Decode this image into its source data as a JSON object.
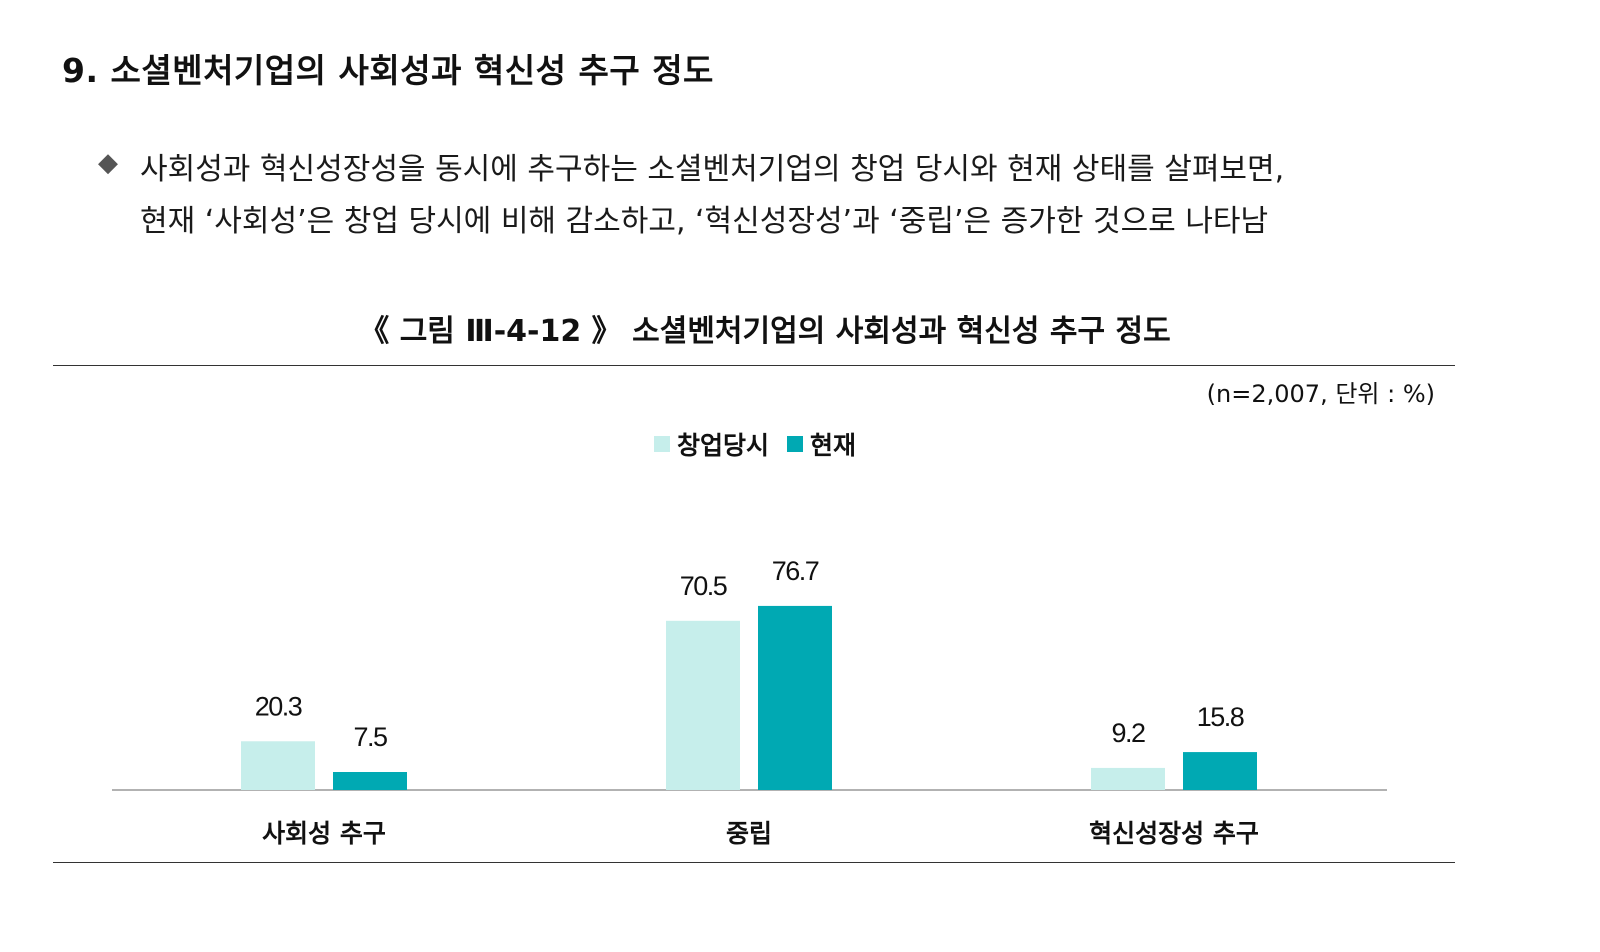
{
  "section": {
    "title": "9. 소셜벤처기업의 사회성과 혁신성 추구 정도"
  },
  "summary": {
    "bullet_icon": "diamond-bullet-icon",
    "bullet_glyph": "◆",
    "line1": "사회성과 혁신성장성을 동시에 추구하는 소셜벤처기업의 창업 당시와 현재 상태를 살펴보면,",
    "line2": "현재 ‘사회성’은 창업 당시에 비해 감소하고, ‘혁신성장성’과 ‘중립’은 증가한 것으로 나타남"
  },
  "figure": {
    "caption": "《 그림 Ⅲ-4-12 》 소셜벤처기업의 사회성과 혁신성 추구 정도",
    "unit_note": "(n=2,007,  단위 : %)"
  },
  "colors": {
    "founding": "#c6eeeb",
    "current": "#00a9b3",
    "axis": "#999999"
  },
  "chart_data": {
    "type": "bar",
    "title": "",
    "xlabel": "",
    "ylabel": "",
    "categories": [
      "사회성 추구",
      "중립",
      "혁신성장성 추구"
    ],
    "series": [
      {
        "name": "창업당시",
        "values": [
          20.3,
          70.5,
          9.2
        ]
      },
      {
        "name": "현재",
        "values": [
          7.5,
          76.7,
          15.8
        ]
      }
    ],
    "ylim": [
      0,
      100
    ],
    "grid": false,
    "legend_position": "top-center",
    "data_labels": true
  }
}
